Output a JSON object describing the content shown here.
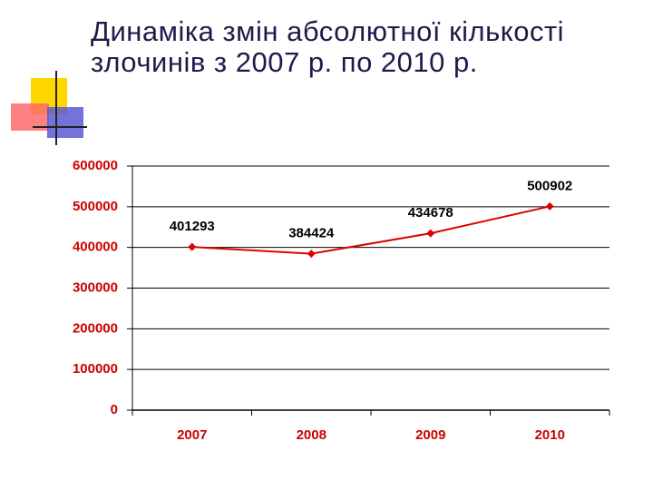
{
  "chart_data": {
    "type": "line",
    "title": "Динаміка змін абсолютної кількості злочинів з 2007 р. по 2010 р.",
    "categories": [
      "2007",
      "2008",
      "2009",
      "2010"
    ],
    "values": [
      401293,
      384424,
      434678,
      500902
    ],
    "color": "#dd0000",
    "ylim": [
      0,
      600000
    ],
    "yticks": [
      0,
      100000,
      200000,
      300000,
      400000,
      500000,
      600000
    ],
    "grid": true
  }
}
